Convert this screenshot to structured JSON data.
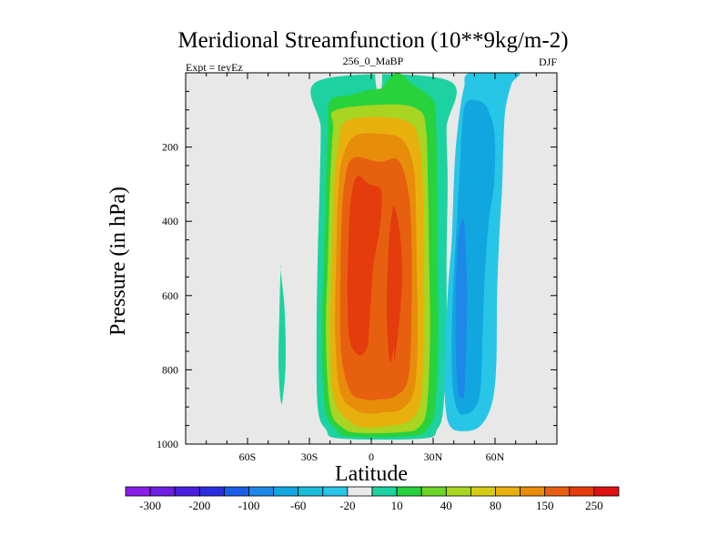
{
  "chart_data": {
    "type": "contour",
    "title": "Meridional Streamfunction (10**9kg/m-2)",
    "left_label": "Expt = teyEz",
    "center_label": "256_0_MaBP",
    "right_label": "DJF",
    "xlabel": "Latitude",
    "ylabel": "Pressure (in hPa)",
    "xlim": [
      -90,
      90
    ],
    "ylim": [
      0,
      1000
    ],
    "y_inverted": true,
    "x_ticks": [
      {
        "value": -60,
        "label": "60S"
      },
      {
        "value": -30,
        "label": "30S"
      },
      {
        "value": 0,
        "label": "0"
      },
      {
        "value": 30,
        "label": "30N"
      },
      {
        "value": 60,
        "label": "60N"
      }
    ],
    "y_ticks": [
      200,
      400,
      600,
      800,
      1000
    ],
    "background_color": "#e8e8e8",
    "colorbar": {
      "labels": [
        "-300",
        "-200",
        "-100",
        "-60",
        "-20",
        "10",
        "40",
        "80",
        "150",
        "250"
      ],
      "colors": [
        "#8a1ee8",
        "#6e1ee0",
        "#4a1ede",
        "#2c2ee0",
        "#1a5ee6",
        "#1e88e8",
        "#12a6e0",
        "#1cbcd8",
        "#28c6e6",
        "#e8e8e8",
        "#1cd2a0",
        "#28d23c",
        "#6cd628",
        "#a8d422",
        "#d4cc16",
        "#e8b00c",
        "#e88c0c",
        "#e66010",
        "#e43c0c",
        "#e01010"
      ]
    },
    "fields": [
      {
        "name": "positive-10",
        "level": "10",
        "color": "#1cd2a0",
        "left": [
          [
            -25,
            20
          ],
          [
            -24.5,
            150
          ],
          [
            -25,
            300
          ],
          [
            -26,
            500
          ],
          [
            -26.5,
            700
          ],
          [
            -26,
            900
          ],
          [
            -22,
            960
          ],
          [
            -15,
            985
          ]
        ],
        "right": [
          [
            37,
            20
          ],
          [
            36.5,
            150
          ],
          [
            37,
            300
          ],
          [
            36.5,
            500
          ],
          [
            36.5,
            700
          ],
          [
            35,
            900
          ],
          [
            32,
            960
          ],
          [
            25,
            985
          ]
        ],
        "notch": [
          [
            2,
            0
          ],
          [
            2.5,
            40
          ],
          [
            3.5,
            55
          ],
          [
            5,
            40
          ],
          [
            5,
            0
          ]
        ]
      },
      {
        "name": "positive-40",
        "level": "40",
        "color": "#28d23c",
        "left": [
          [
            -20,
            75
          ],
          [
            -21,
            150
          ],
          [
            -22,
            300
          ],
          [
            -23,
            500
          ],
          [
            -24,
            700
          ],
          [
            -22.5,
            900
          ],
          [
            -17,
            960
          ],
          [
            -10,
            980
          ]
        ],
        "right": [
          [
            13,
            0
          ],
          [
            20,
            30
          ],
          [
            30,
            75
          ],
          [
            31.5,
            150
          ],
          [
            32,
            300
          ],
          [
            32,
            500
          ],
          [
            32.5,
            700
          ],
          [
            31,
            900
          ],
          [
            27,
            960
          ],
          [
            20,
            978
          ]
        ],
        "inner_top": [
          [
            -20,
            75
          ],
          [
            -10,
            60
          ],
          [
            0,
            45
          ],
          [
            5,
            42
          ],
          [
            8,
            20
          ],
          [
            13,
            0
          ]
        ]
      },
      {
        "name": "positive-80",
        "level": "80",
        "color": "#a8d422",
        "left": [
          [
            -17,
            100
          ],
          [
            -18.5,
            150
          ],
          [
            -20,
            300
          ],
          [
            -21,
            500
          ],
          [
            -22,
            700
          ],
          [
            -20,
            900
          ],
          [
            -14,
            955
          ],
          [
            -6,
            970
          ]
        ],
        "right": [
          [
            10,
            85
          ],
          [
            23,
            100
          ],
          [
            26.5,
            150
          ],
          [
            27.5,
            300
          ],
          [
            28,
            500
          ],
          [
            28.5,
            700
          ],
          [
            27,
            900
          ],
          [
            23,
            955
          ],
          [
            15,
            968
          ]
        ]
      },
      {
        "name": "positive-150",
        "level": "150",
        "color": "#e8b00c",
        "left": [
          [
            -12,
            130
          ],
          [
            -16,
            200
          ],
          [
            -18,
            300
          ],
          [
            -19,
            500
          ],
          [
            -20,
            700
          ],
          [
            -18,
            880
          ],
          [
            -10,
            940
          ],
          [
            -3,
            955
          ]
        ],
        "right": [
          [
            8,
            120
          ],
          [
            20,
            140
          ],
          [
            23.5,
            200
          ],
          [
            25,
            300
          ],
          [
            25.5,
            500
          ],
          [
            25.5,
            700
          ],
          [
            24,
            880
          ],
          [
            19,
            935
          ],
          [
            10,
            950
          ]
        ]
      },
      {
        "name": "positive-200",
        "level": "200",
        "color": "#e88c0c",
        "left": [
          [
            -8,
            170
          ],
          [
            -14,
            230
          ],
          [
            -16,
            320
          ],
          [
            -17,
            500
          ],
          [
            -17.5,
            700
          ],
          [
            -15,
            860
          ],
          [
            -7,
            910
          ],
          [
            0,
            918
          ]
        ],
        "right": [
          [
            6,
            165
          ],
          [
            15,
            180
          ],
          [
            20,
            240
          ],
          [
            21.5,
            330
          ],
          [
            22,
            500
          ],
          [
            22.5,
            700
          ],
          [
            21,
            850
          ],
          [
            15,
            905
          ],
          [
            6,
            915
          ]
        ]
      },
      {
        "name": "positive-250",
        "level": "250",
        "color": "#e66010",
        "left": [
          [
            -9,
            230
          ],
          [
            -13,
            300
          ],
          [
            -14.5,
            420
          ],
          [
            -15,
            600
          ],
          [
            -14.5,
            760
          ],
          [
            -10,
            860
          ],
          [
            -3,
            880
          ]
        ],
        "right": [
          [
            4,
            240
          ],
          [
            13,
            235
          ],
          [
            18,
            320
          ],
          [
            19.5,
            450
          ],
          [
            19.5,
            650
          ],
          [
            18,
            820
          ],
          [
            12,
            870
          ],
          [
            3,
            880
          ]
        ]
      },
      {
        "name": "positive-300",
        "level": "300",
        "color": "#e43c0c",
        "left": [
          [
            -7,
            280
          ],
          [
            -10,
            350
          ],
          [
            -11,
            450
          ],
          [
            -11.5,
            600
          ],
          [
            -10.5,
            720
          ],
          [
            -6,
            760
          ]
        ],
        "right": [
          [
            -1,
            300
          ],
          [
            5,
            320
          ],
          [
            4,
            420
          ],
          [
            1,
            520
          ],
          [
            0,
            600
          ],
          [
            -1,
            680
          ],
          [
            -2,
            740
          ]
        ],
        "second": {
          "left": [
            [
              9,
              430
            ],
            [
              8,
              520
            ],
            [
              7.5,
              650
            ],
            [
              9,
              780
            ],
            [
              11,
              740
            ]
          ],
          "right": [
            [
              11,
              360
            ],
            [
              14,
              440
            ],
            [
              15,
              560
            ],
            [
              13,
              700
            ],
            [
              11,
              780
            ]
          ]
        }
      },
      {
        "name": "negative-20",
        "level": "-20",
        "color": "#28c6e6",
        "left": [
          [
            48,
            0
          ],
          [
            45,
            40
          ],
          [
            43,
            100
          ],
          [
            41,
            200
          ],
          [
            40,
            300
          ],
          [
            39,
            450
          ],
          [
            37,
            600
          ],
          [
            35.5,
            800
          ],
          [
            36,
            900
          ],
          [
            38,
            950
          ],
          [
            43,
            965
          ]
        ],
        "right": [
          [
            71,
            0
          ],
          [
            68,
            30
          ],
          [
            65,
            100
          ],
          [
            64,
            200
          ],
          [
            63.5,
            300
          ],
          [
            62,
            450
          ],
          [
            61,
            600
          ],
          [
            60.5,
            800
          ],
          [
            58,
            900
          ],
          [
            52,
            955
          ]
        ]
      },
      {
        "name": "negative-60",
        "level": "-60",
        "color": "#12a6e0",
        "left": [
          [
            46,
            80
          ],
          [
            44,
            150
          ],
          [
            43,
            250
          ],
          [
            41.5,
            400
          ],
          [
            40,
            550
          ],
          [
            39,
            700
          ],
          [
            39.5,
            850
          ],
          [
            42,
            910
          ],
          [
            45,
            920
          ]
        ],
        "right": [
          [
            54,
            80
          ],
          [
            58,
            120
          ],
          [
            60,
            180
          ],
          [
            59.5,
            300
          ],
          [
            57,
            400
          ],
          [
            55,
            550
          ],
          [
            54,
            700
          ],
          [
            53,
            850
          ],
          [
            50,
            905
          ]
        ]
      },
      {
        "name": "negative-100",
        "level": "-100",
        "color": "#1e88e8",
        "left": [
          [
            43,
            410
          ],
          [
            41.5,
            500
          ],
          [
            41,
            600
          ],
          [
            41,
            750
          ],
          [
            42,
            860
          ],
          [
            44,
            875
          ]
        ],
        "right": [
          [
            45,
            400
          ],
          [
            46,
            500
          ],
          [
            46.5,
            600
          ],
          [
            46,
            750
          ],
          [
            45,
            870
          ]
        ]
      },
      {
        "name": "positive-sliver",
        "level": "10",
        "color": "#1cd2a0",
        "left": [
          [
            -44,
            530
          ],
          [
            -44.5,
            640
          ],
          [
            -45,
            780
          ],
          [
            -44,
            880
          ]
        ],
        "right": [
          [
            -44,
            530
          ],
          [
            -42,
            640
          ],
          [
            -41.5,
            780
          ],
          [
            -43,
            880
          ]
        ]
      }
    ]
  }
}
